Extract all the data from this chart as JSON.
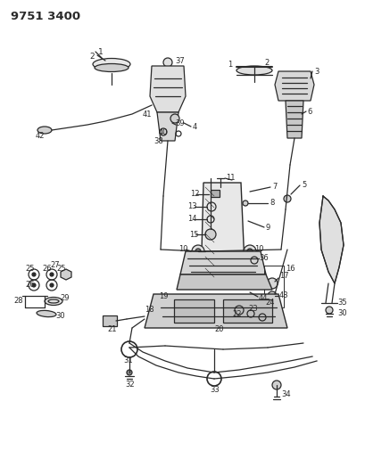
{
  "title": "9751 3400",
  "bg_color": "#ffffff",
  "line_color": "#2a2a2a",
  "title_fontsize": 9.5,
  "fig_width": 4.1,
  "fig_height": 5.33,
  "dpi": 100
}
